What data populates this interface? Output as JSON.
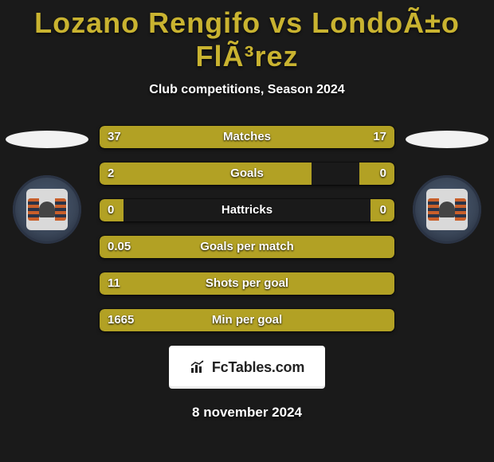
{
  "title": "Lozano Rengifo vs LondoÃ±o FlÃ³rez",
  "subtitle": "Club competitions, Season 2024",
  "date": "8 november 2024",
  "branding_text": "FcTables.com",
  "colors": {
    "accent": "#c9b330",
    "bar_fill": "#b2a124",
    "background": "#1a1a1a",
    "text": "#ffffff",
    "branding_bg": "#ffffff",
    "branding_text": "#222222"
  },
  "typography": {
    "title_fontsize": 36,
    "subtitle_fontsize": 16,
    "bar_label_fontsize": 15,
    "date_fontsize": 17
  },
  "bars": [
    {
      "label": "Matches",
      "left": "37",
      "right": "17",
      "left_pct": 70,
      "right_pct": 30
    },
    {
      "label": "Goals",
      "left": "2",
      "right": "0",
      "left_pct": 72,
      "right_pct": 12
    },
    {
      "label": "Hattricks",
      "left": "0",
      "right": "0",
      "left_pct": 8,
      "right_pct": 8
    },
    {
      "label": "Goals per match",
      "left": "0.05",
      "right": "",
      "left_pct": 100,
      "right_pct": 0
    },
    {
      "label": "Shots per goal",
      "left": "11",
      "right": "",
      "left_pct": 100,
      "right_pct": 0
    },
    {
      "label": "Min per goal",
      "left": "1665",
      "right": "",
      "left_pct": 100,
      "right_pct": 0
    }
  ],
  "crests": {
    "left": {
      "name": "club-crest-left"
    },
    "right": {
      "name": "club-crest-right"
    }
  }
}
